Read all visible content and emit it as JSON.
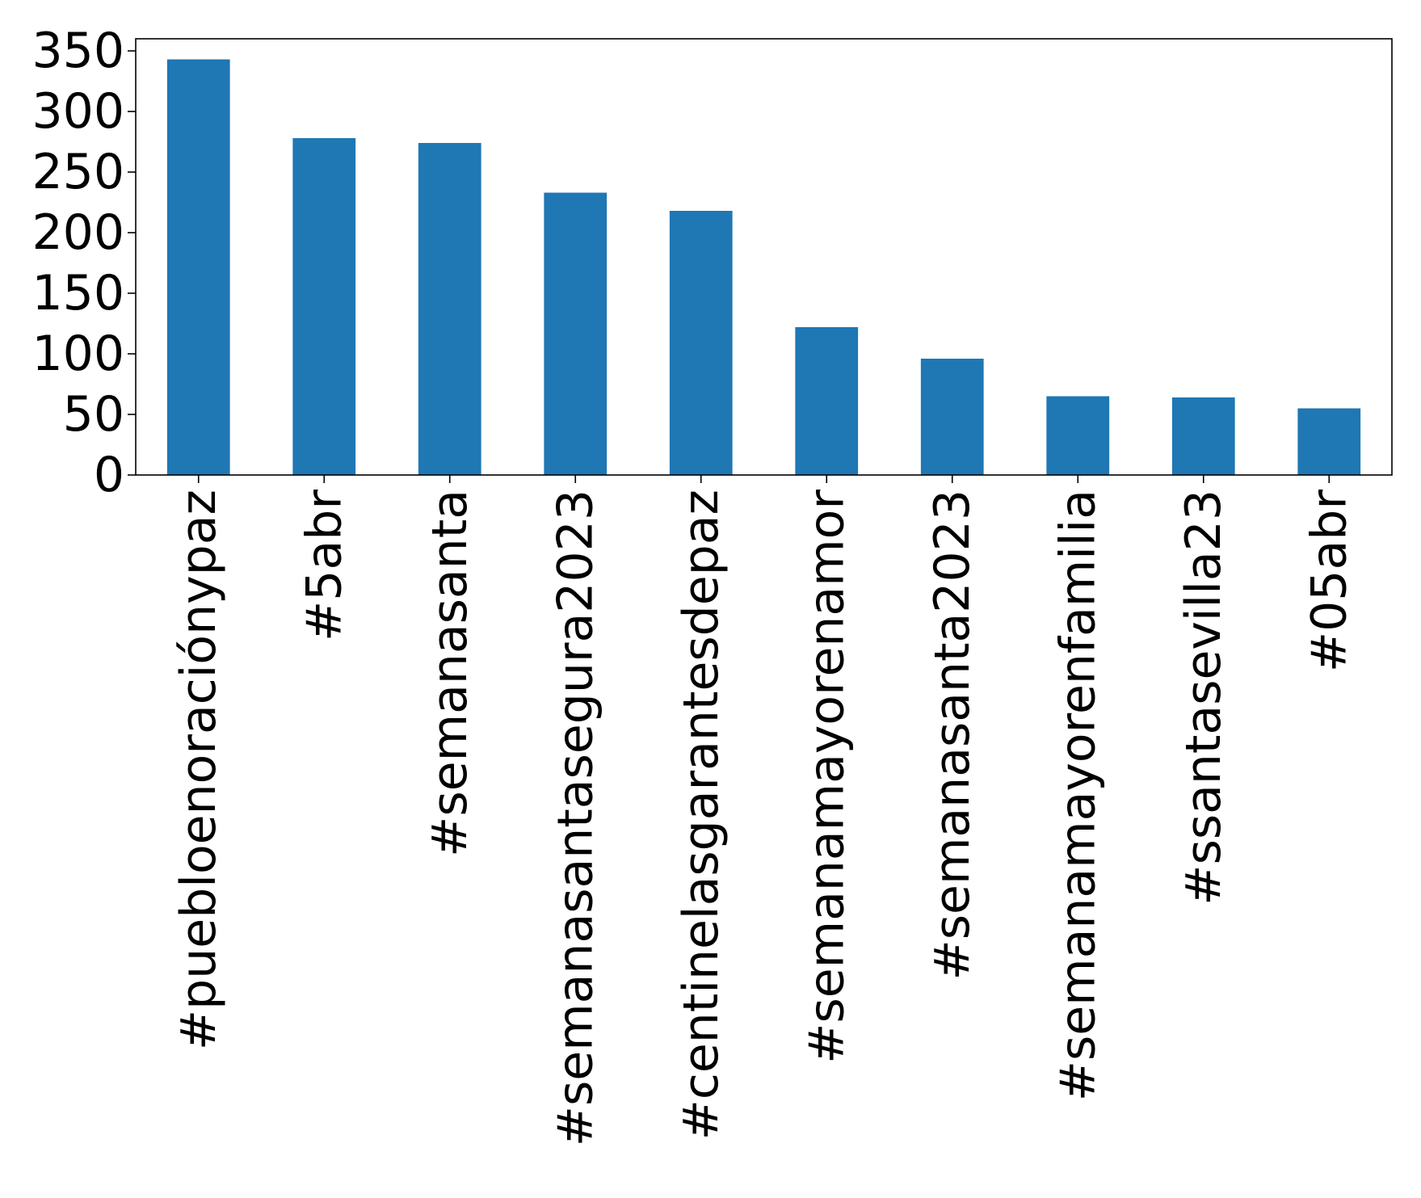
{
  "chart_data": {
    "type": "bar",
    "categories": [
      "#puebloenoraciónypaz",
      "#5abr",
      "#semanasanta",
      "#semanasantasegura2023",
      "#centinelasgarantesdepaz",
      "#semanamayorenamor",
      "#semanasanta2023",
      "#semanamayorenfamilia",
      "#ssantasevilla23",
      "#05abr"
    ],
    "values": [
      343,
      278,
      274,
      233,
      218,
      122,
      96,
      65,
      64,
      55
    ],
    "yticks": [
      0,
      50,
      100,
      150,
      200,
      250,
      300,
      350
    ],
    "ylim": [
      0,
      360
    ],
    "title": "",
    "xlabel": "",
    "ylabel": "",
    "legend": false,
    "grid": false,
    "bar_color": "#1f77b4"
  }
}
